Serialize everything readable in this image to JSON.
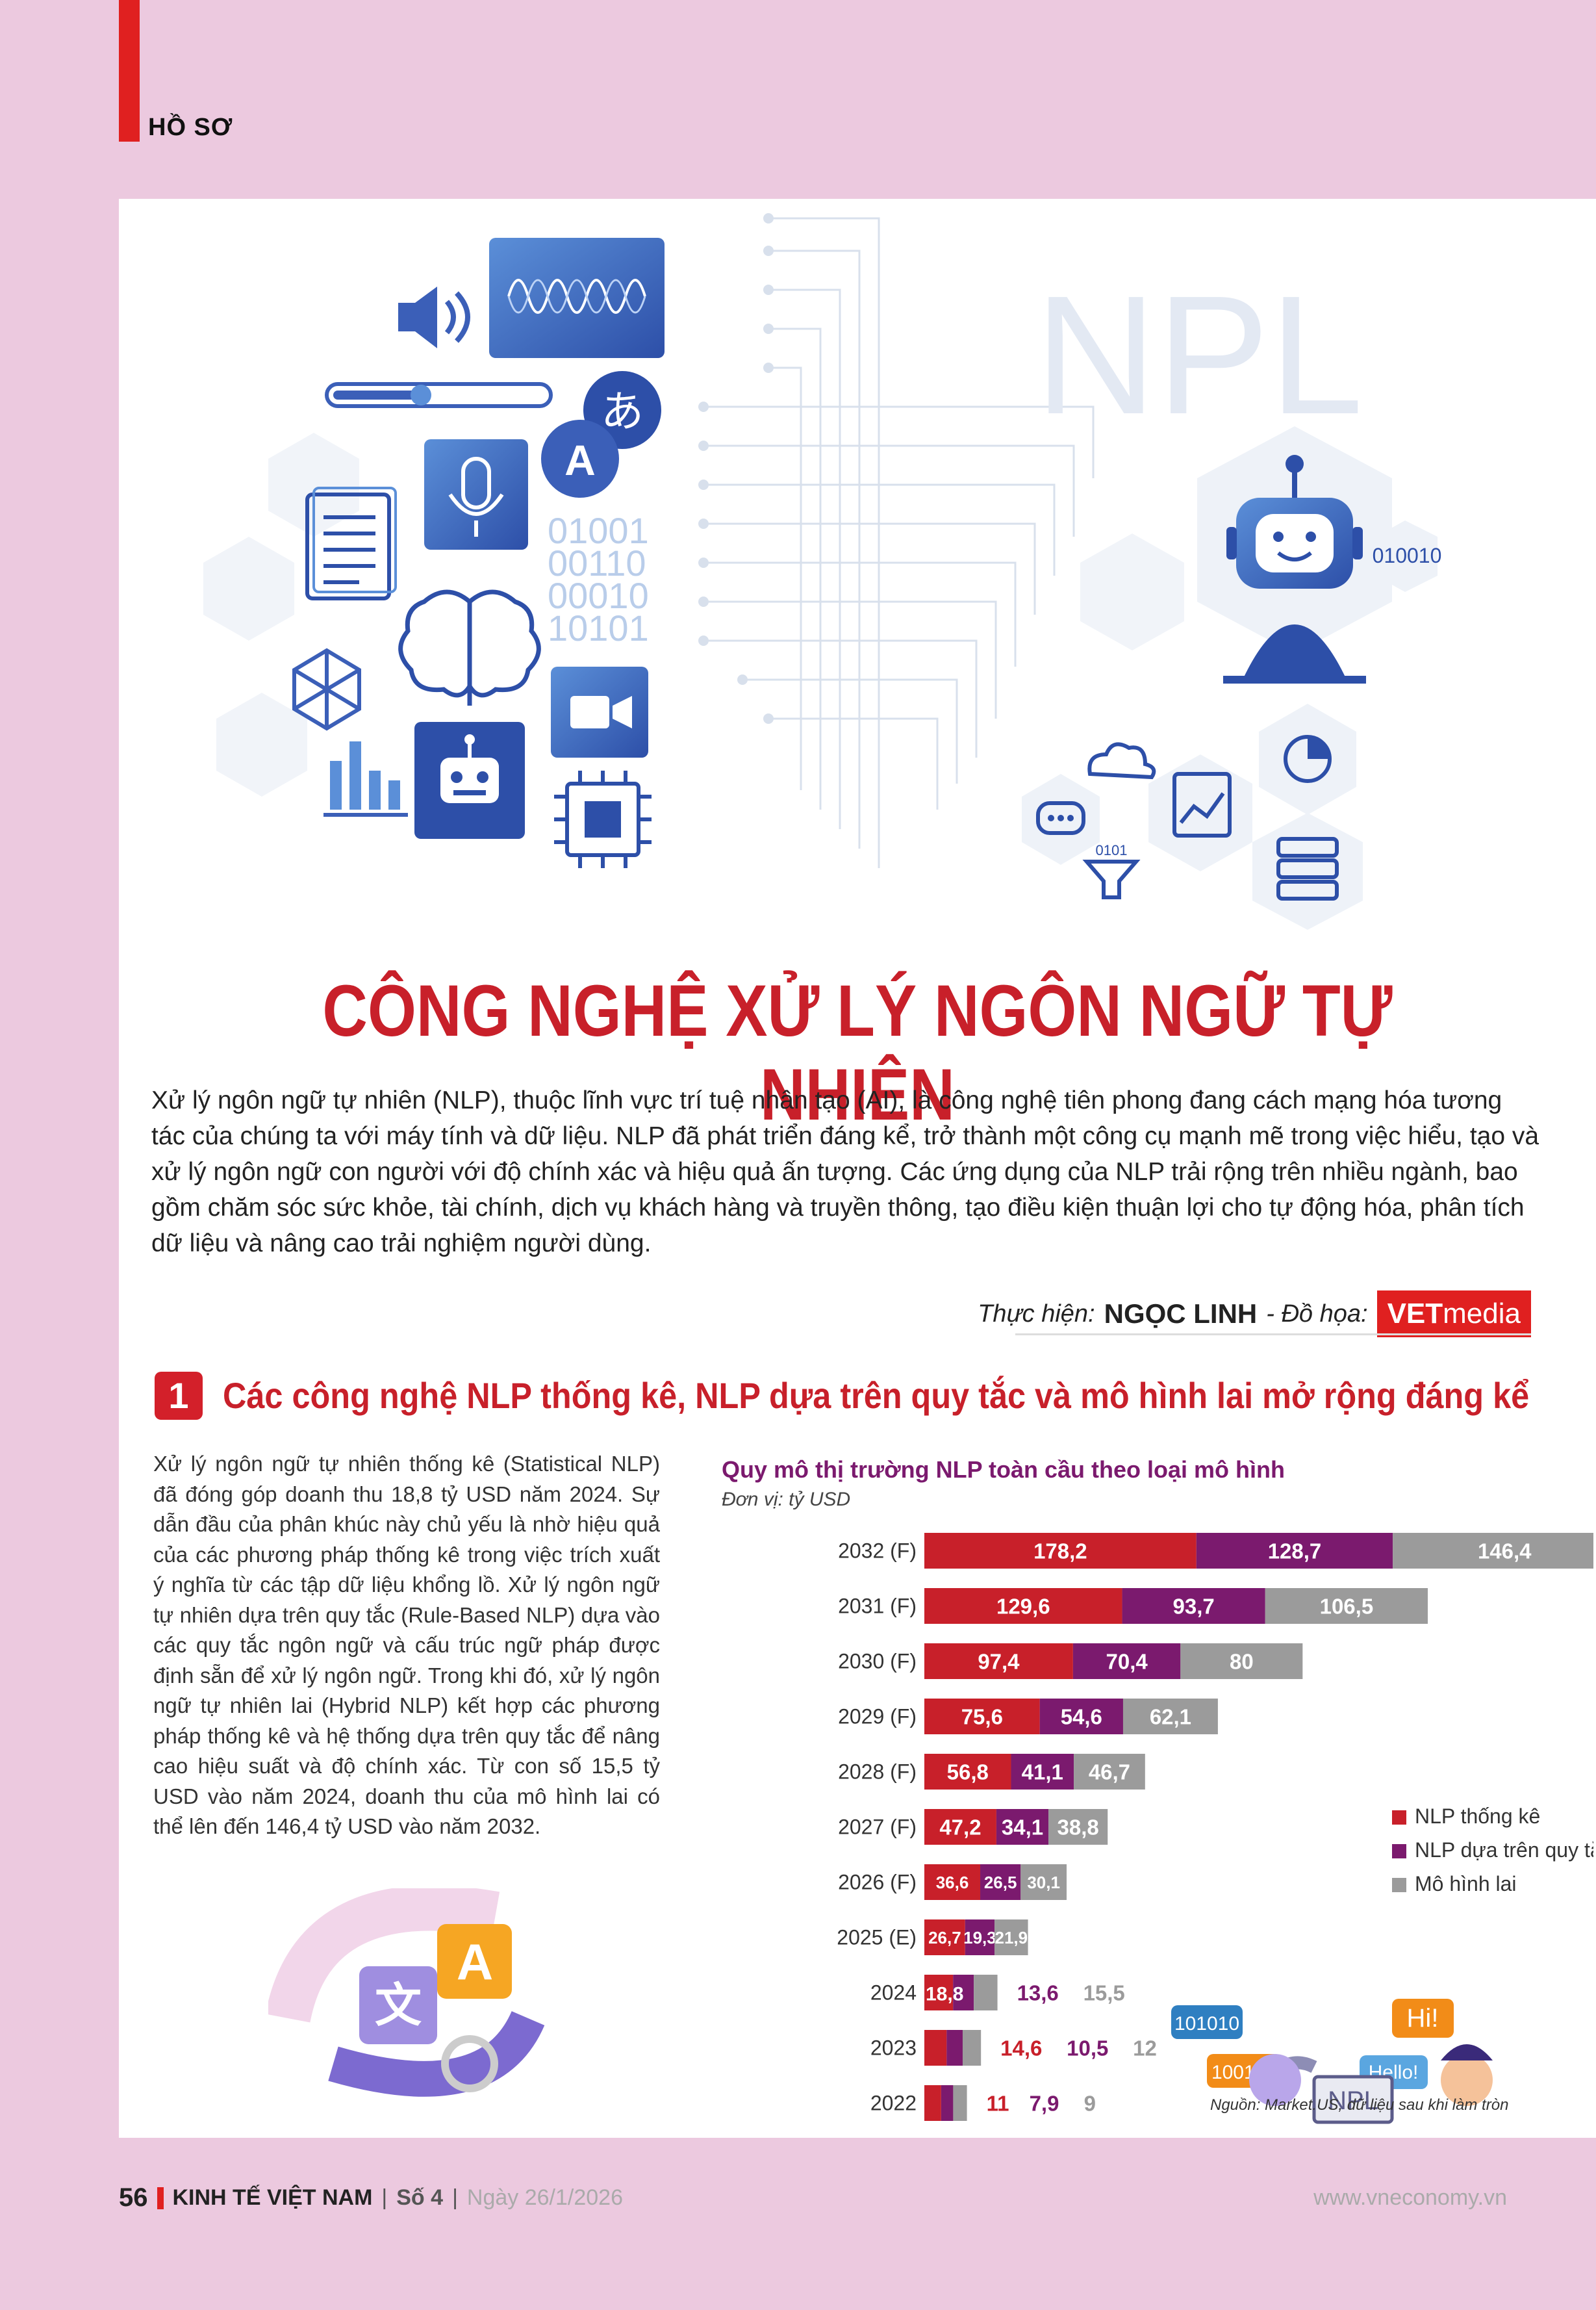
{
  "header": {
    "section": "HỒ SƠ"
  },
  "hero": {
    "npl_text": "NPL",
    "binary_block": [
      "01001",
      "00110",
      "00010",
      "10101"
    ],
    "robot_tag": "010010",
    "funnel_tag": "0101",
    "glyph_a": "A",
    "glyph_jp": "あ"
  },
  "article": {
    "title": "CÔNG NGHỆ XỬ LÝ NGÔN NGỮ TỰ NHIÊN",
    "intro": "Xử lý ngôn ngữ tự nhiên (NLP), thuộc lĩnh vực trí tuệ nhân tạo (AI), là công nghệ tiên phong đang cách mạng hóa tương tác của chúng ta với máy tính và dữ liệu. NLP đã phát triển đáng kể, trở thành một công cụ mạnh mẽ trong việc hiểu, tạo và xử lý ngôn ngữ con người với độ chính xác và hiệu quả ấn tượng. Các ứng dụng của NLP trải rộng trên nhiều ngành, bao gồm chăm sóc sức khỏe, tài chính, dịch vụ khách hàng và truyền thông, tạo điều kiện thuận lợi cho tự động hóa, phân tích dữ liệu và nâng cao trải nghiệm người dùng.",
    "credit_label": "Thực hiện:",
    "credit_name": "NGỌC LINH",
    "graphics_label": "- Đồ họa:",
    "logo_bold": "VET",
    "logo_light": "media"
  },
  "section1": {
    "number": "1",
    "title": "Các công nghệ NLP thống kê, NLP dựa trên quy tắc và mô hình lai mở rộng đáng kể",
    "body": "Xử lý ngôn ngữ tự nhiên thống kê (Statistical NLP) đã đóng góp doanh thu 18,8 tỷ USD năm 2024. Sự dẫn đầu của phân khúc này chủ yếu là nhờ hiệu quả của các phương pháp thống kê trong việc trích xuất ý nghĩa từ các tập dữ liệu khổng lồ. Xử lý ngôn ngữ tự nhiên dựa trên quy tắc (Rule-Based NLP) dựa vào các quy tắc ngôn ngữ và cấu trúc ngữ pháp được định sẵn để xử lý ngôn ngữ. Trong khi đó, xử lý ngôn ngữ tự nhiên lai (Hybrid NLP) kết hợp các phương pháp thống kê và hệ thống dựa trên quy tắc để nâng cao hiệu suất và độ chính xác. Từ con số 15,5 tỷ USD vào năm 2024, doanh thu của mô hình lai có thể lên đến 146,4 tỷ USD vào năm 2032.",
    "translate_glyph_a": "A",
    "translate_glyph_zh": "文"
  },
  "chart_data": {
    "type": "bar",
    "stacked": true,
    "orientation": "horizontal",
    "title": "Quy mô thị trường NLP toàn cầu theo loại mô hình",
    "subtitle": "Đơn vị: tỷ USD",
    "categories": [
      "2032 (F)",
      "2031 (F)",
      "2030 (F)",
      "2029 (F)",
      "2028 (F)",
      "2027 (F)",
      "2026 (F)",
      "2025 (E)",
      "2024",
      "2023",
      "2022"
    ],
    "series": [
      {
        "name": "NLP thống kê",
        "color": "#c8202a",
        "values": [
          178.2,
          129.6,
          97.4,
          75.6,
          56.8,
          47.2,
          36.6,
          26.7,
          18.8,
          14.6,
          11
        ],
        "labels": [
          "178,2",
          "129,6",
          "97,4",
          "75,6",
          "56,8",
          "47,2",
          "36,6",
          "26,7",
          "18,8",
          "14,6",
          "11"
        ]
      },
      {
        "name": "NLP dựa trên quy tắc",
        "color": "#7b1a6e",
        "values": [
          128.7,
          93.7,
          70.4,
          54.6,
          41.1,
          34.1,
          26.5,
          19.3,
          13.6,
          10.5,
          7.9
        ],
        "labels": [
          "128,7",
          "93,7",
          "70,4",
          "54,6",
          "41,1",
          "34,1",
          "26,5",
          "19,3",
          "13,6",
          "10,5",
          "7,9"
        ]
      },
      {
        "name": "Mô hình lai",
        "color": "#9b9b9b",
        "values": [
          146.4,
          106.5,
          80,
          62.1,
          46.7,
          38.8,
          30.1,
          21.9,
          15.5,
          12,
          9
        ],
        "labels": [
          "146,4",
          "106,5",
          "80",
          "62,1",
          "46,7",
          "38,8",
          "30,1",
          "21,9",
          "15,5",
          "12",
          "9"
        ]
      }
    ],
    "legend_position": "right",
    "source": "Nguồn: Market.US, dữ liệu sau khi làm tròn",
    "illustration": {
      "bubble1": "101010",
      "bubble2": "100101",
      "bubble3": "Hi!",
      "bubble4": "Hello!",
      "laptop": "NPL"
    }
  },
  "footer": {
    "page": "56",
    "magazine": "KINH TẾ VIỆT NAM",
    "issue": "Số 4",
    "date": "Ngày 26/1/2026",
    "website": "www.vneconomy.vn"
  }
}
